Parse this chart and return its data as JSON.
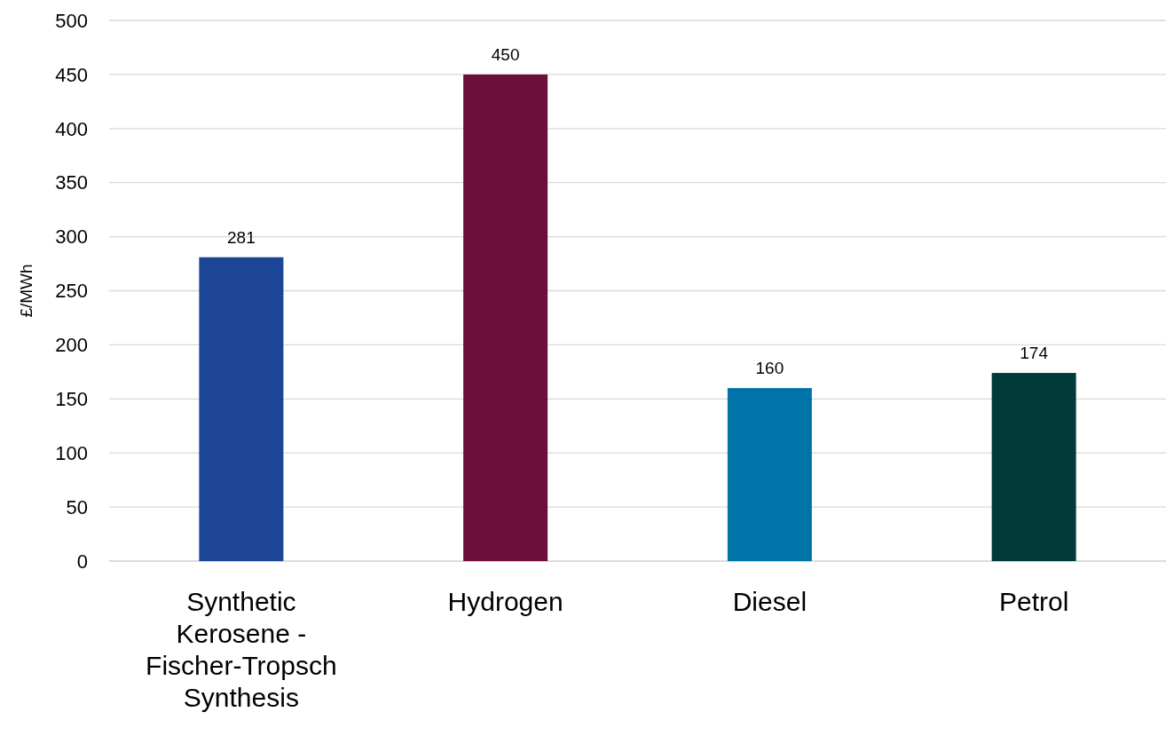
{
  "chart_data": {
    "type": "bar",
    "ylabel": "£/MWh",
    "categories": [
      "Synthetic Kerosene - Fischer-Tropsch Synthesis",
      "Hydrogen",
      "Diesel",
      "Petrol"
    ],
    "values": [
      281,
      450,
      160,
      174
    ],
    "colors": [
      "#1c4595",
      "#6d0e3b",
      "#0074a8",
      "#003b3a"
    ],
    "ylim": [
      0,
      500
    ],
    "yticks": [
      0,
      50,
      100,
      150,
      200,
      250,
      300,
      350,
      400,
      450,
      500
    ],
    "grid": "y",
    "data_labels": true
  }
}
